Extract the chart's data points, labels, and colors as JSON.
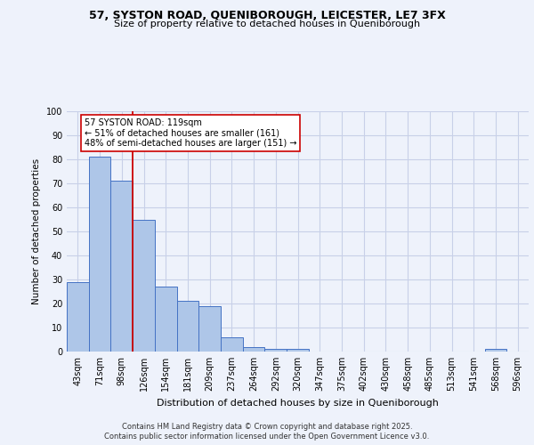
{
  "title1": "57, SYSTON ROAD, QUENIBOROUGH, LEICESTER, LE7 3FX",
  "title2": "Size of property relative to detached houses in Queniborough",
  "xlabel": "Distribution of detached houses by size in Queniborough",
  "ylabel": "Number of detached properties",
  "categories": [
    "43sqm",
    "71sqm",
    "98sqm",
    "126sqm",
    "154sqm",
    "181sqm",
    "209sqm",
    "237sqm",
    "264sqm",
    "292sqm",
    "320sqm",
    "347sqm",
    "375sqm",
    "402sqm",
    "430sqm",
    "458sqm",
    "485sqm",
    "513sqm",
    "541sqm",
    "568sqm",
    "596sqm"
  ],
  "values": [
    29,
    81,
    71,
    55,
    27,
    21,
    19,
    6,
    2,
    1,
    1,
    0,
    0,
    0,
    0,
    0,
    0,
    0,
    0,
    1,
    0
  ],
  "bar_color": "#aec6e8",
  "bar_edge_color": "#4472c4",
  "vline_x": 2.5,
  "vline_color": "#cc0000",
  "annotation_text": "57 SYSTON ROAD: 119sqm\n← 51% of detached houses are smaller (161)\n48% of semi-detached houses are larger (151) →",
  "annotation_box_color": "#ffffff",
  "annotation_box_edge": "#cc0000",
  "ylim": [
    0,
    100
  ],
  "yticks": [
    0,
    10,
    20,
    30,
    40,
    50,
    60,
    70,
    80,
    90,
    100
  ],
  "footer1": "Contains HM Land Registry data © Crown copyright and database right 2025.",
  "footer2": "Contains public sector information licensed under the Open Government Licence v3.0.",
  "bg_color": "#eef2fb",
  "grid_color": "#c8d0e8"
}
